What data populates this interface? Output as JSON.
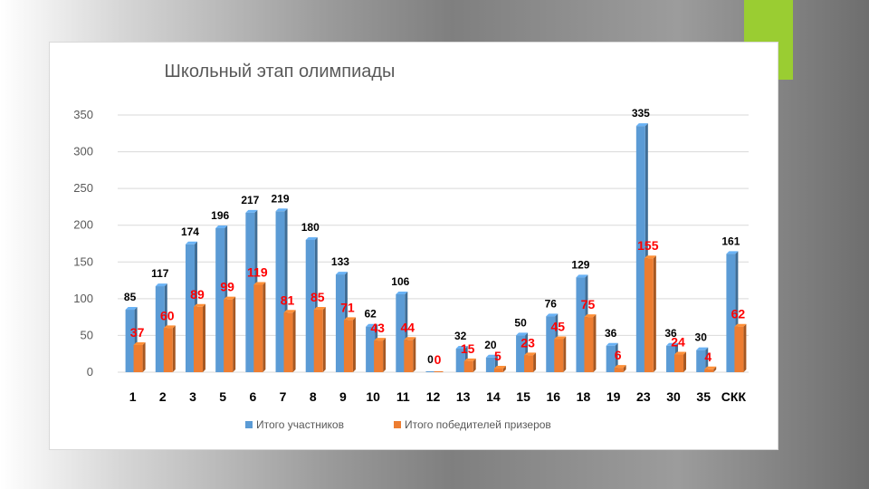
{
  "chart_data": {
    "type": "bar",
    "title": "Школьный этап олимпиады",
    "xlabel": "",
    "ylabel": "",
    "ylim": [
      0,
      350
    ],
    "yticks": [
      0,
      50,
      100,
      150,
      200,
      250,
      300,
      350
    ],
    "grid": true,
    "legend_position": "bottom",
    "categories": [
      "1",
      "2",
      "3",
      "5",
      "6",
      "7",
      "8",
      "9",
      "10",
      "11",
      "12",
      "13",
      "14",
      "15",
      "16",
      "18",
      "19",
      "23",
      "30",
      "35",
      "СКК"
    ],
    "series": [
      {
        "name": "Итого участников",
        "color": "#5b9bd5",
        "values": [
          85,
          117,
          174,
          196,
          217,
          219,
          180,
          133,
          62,
          106,
          0,
          32,
          20,
          50,
          76,
          129,
          36,
          335,
          36,
          30,
          161
        ]
      },
      {
        "name": "Итого победителей призеров",
        "color": "#ed7d31",
        "values": [
          37,
          60,
          89,
          99,
          119,
          81,
          85,
          71,
          43,
          44,
          0,
          15,
          5,
          23,
          45,
          75,
          6,
          155,
          24,
          4,
          62
        ]
      }
    ]
  }
}
